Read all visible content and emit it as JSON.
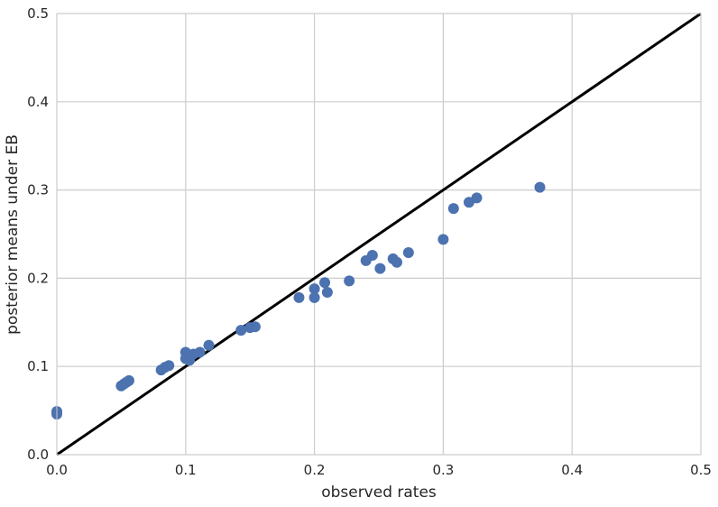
{
  "chart_data": {
    "type": "scatter",
    "title": "",
    "xlabel": "observed rates",
    "ylabel": "posterior means under EB",
    "xlim": [
      0,
      0.5
    ],
    "ylim": [
      0,
      0.5
    ],
    "xticks": [
      "0.0",
      "0.1",
      "0.2",
      "0.3",
      "0.4",
      "0.5"
    ],
    "yticks": [
      "0.0",
      "0.1",
      "0.2",
      "0.3",
      "0.4",
      "0.5"
    ],
    "grid": true,
    "reference_line": {
      "x": [
        0,
        0.5
      ],
      "y": [
        0,
        0.5
      ],
      "color": "#000000"
    },
    "series": [
      {
        "color": "#4c72b0",
        "points": [
          [
            0.0,
            0.049
          ],
          [
            0.0,
            0.046
          ],
          [
            0.05,
            0.078
          ],
          [
            0.052,
            0.08
          ],
          [
            0.054,
            0.082
          ],
          [
            0.056,
            0.084
          ],
          [
            0.081,
            0.096
          ],
          [
            0.084,
            0.099
          ],
          [
            0.087,
            0.101
          ],
          [
            0.1,
            0.116
          ],
          [
            0.1,
            0.109
          ],
          [
            0.103,
            0.107
          ],
          [
            0.106,
            0.114
          ],
          [
            0.111,
            0.116
          ],
          [
            0.118,
            0.124
          ],
          [
            0.143,
            0.141
          ],
          [
            0.15,
            0.144
          ],
          [
            0.154,
            0.145
          ],
          [
            0.188,
            0.178
          ],
          [
            0.2,
            0.188
          ],
          [
            0.2,
            0.178
          ],
          [
            0.208,
            0.195
          ],
          [
            0.21,
            0.184
          ],
          [
            0.227,
            0.197
          ],
          [
            0.24,
            0.22
          ],
          [
            0.245,
            0.226
          ],
          [
            0.251,
            0.211
          ],
          [
            0.261,
            0.222
          ],
          [
            0.264,
            0.218
          ],
          [
            0.273,
            0.229
          ],
          [
            0.3,
            0.244
          ],
          [
            0.308,
            0.279
          ],
          [
            0.32,
            0.286
          ],
          [
            0.326,
            0.291
          ],
          [
            0.375,
            0.303
          ]
        ]
      }
    ]
  }
}
